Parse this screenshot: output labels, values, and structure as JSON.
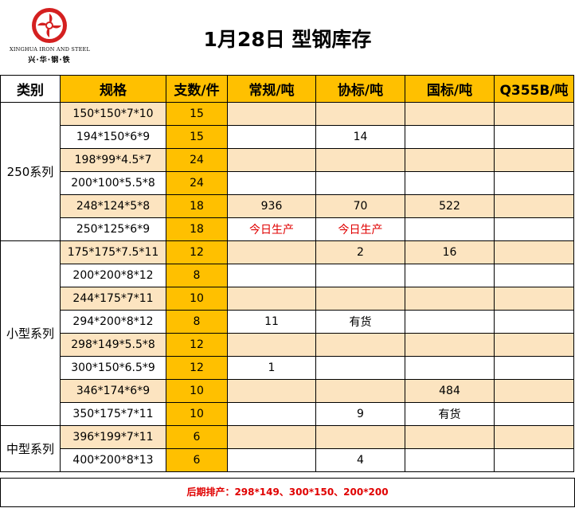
{
  "company": {
    "logo_en": "XINGHUA IRON AND STEEL",
    "logo_cn": "兴·华·钢·铁",
    "logo_color": "#D42020"
  },
  "title": "1月28日 型钢库存",
  "headers": [
    "类别",
    "规格",
    "支数/件",
    "常规/吨",
    "协标/吨",
    "国标/吨",
    "Q355B/吨"
  ],
  "groups": [
    {
      "category": "250系列",
      "rows": [
        {
          "spec": "150*150*7*10",
          "pieces": "15",
          "regular": "",
          "assoc": "",
          "national": "",
          "q355b": ""
        },
        {
          "spec": "194*150*6*9",
          "pieces": "15",
          "regular": "",
          "assoc": "14",
          "national": "",
          "q355b": ""
        },
        {
          "spec": "198*99*4.5*7",
          "pieces": "24",
          "regular": "",
          "assoc": "",
          "national": "",
          "q355b": ""
        },
        {
          "spec": "200*100*5.5*8",
          "pieces": "24",
          "regular": "",
          "assoc": "",
          "national": "",
          "q355b": ""
        },
        {
          "spec": "248*124*5*8",
          "pieces": "18",
          "regular": "936",
          "assoc": "70",
          "national": "522",
          "q355b": ""
        },
        {
          "spec": "250*125*6*9",
          "pieces": "18",
          "regular": "今日生产",
          "assoc": "今日生产",
          "national": "",
          "q355b": ""
        }
      ]
    },
    {
      "category": "小型系列",
      "rows": [
        {
          "spec": "175*175*7.5*11",
          "pieces": "12",
          "regular": "",
          "assoc": "2",
          "national": "16",
          "q355b": ""
        },
        {
          "spec": "200*200*8*12",
          "pieces": "8",
          "regular": "",
          "assoc": "",
          "national": "",
          "q355b": ""
        },
        {
          "spec": "244*175*7*11",
          "pieces": "10",
          "regular": "",
          "assoc": "",
          "national": "",
          "q355b": ""
        },
        {
          "spec": "294*200*8*12",
          "pieces": "8",
          "regular": "11",
          "assoc": "有货",
          "national": "",
          "q355b": ""
        },
        {
          "spec": "298*149*5.5*8",
          "pieces": "12",
          "regular": "",
          "assoc": "",
          "national": "",
          "q355b": ""
        },
        {
          "spec": "300*150*6.5*9",
          "pieces": "12",
          "regular": "1",
          "assoc": "",
          "national": "",
          "q355b": ""
        },
        {
          "spec": "346*174*6*9",
          "pieces": "10",
          "regular": "",
          "assoc": "",
          "national": "484",
          "q355b": ""
        },
        {
          "spec": "350*175*7*11",
          "pieces": "10",
          "regular": "",
          "assoc": "9",
          "national": "有货",
          "q355b": ""
        }
      ]
    },
    {
      "category": "中型系列",
      "rows": [
        {
          "spec": "396*199*7*11",
          "pieces": "6",
          "regular": "",
          "assoc": "",
          "national": "",
          "q355b": ""
        },
        {
          "spec": "400*200*8*13",
          "pieces": "6",
          "regular": "",
          "assoc": "4",
          "national": "",
          "q355b": ""
        }
      ]
    }
  ],
  "red_values": [
    "今日生产"
  ],
  "footer": "后期排产：298*149、300*150、200*200",
  "colors": {
    "header_amber": "#FFC000",
    "row_cream": "#FCE4C0",
    "alert_red": "#E00000"
  }
}
